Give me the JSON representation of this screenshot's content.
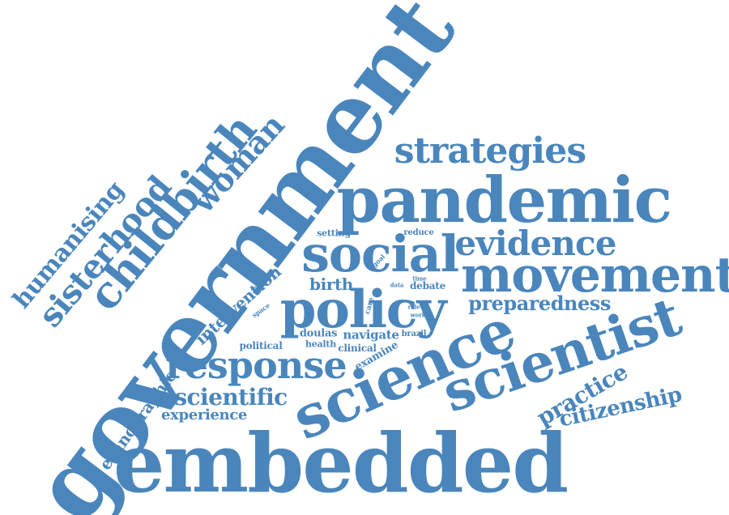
{
  "color": "#4a86bc",
  "words": [
    {
      "key": "government",
      "text": "government"
    },
    {
      "key": "pandemic",
      "text": "pandemic"
    },
    {
      "key": "embedded",
      "text": "embedded"
    },
    {
      "key": "science",
      "text": "science"
    },
    {
      "key": "scientist",
      "text": "scientist"
    },
    {
      "key": "policy",
      "text": "policy"
    },
    {
      "key": "social",
      "text": "social"
    },
    {
      "key": "movement",
      "text": "movement"
    },
    {
      "key": "strategies",
      "text": "strategies"
    },
    {
      "key": "childbirth",
      "text": "childbirth"
    },
    {
      "key": "response",
      "text": "response"
    },
    {
      "key": "evidence",
      "text": "evidence"
    },
    {
      "key": "sisterhood",
      "text": "sisterhood"
    },
    {
      "key": "woman",
      "text": "woman"
    },
    {
      "key": "humanising",
      "text": "humanising"
    },
    {
      "key": "scientific",
      "text": "scientific"
    },
    {
      "key": "preparedness",
      "text": "preparedness"
    },
    {
      "key": "practice",
      "text": "practice"
    },
    {
      "key": "citizenship",
      "text": "citizenship"
    },
    {
      "key": "ethnographic",
      "text": "ethnographic"
    },
    {
      "key": "intervention",
      "text": "intervention"
    },
    {
      "key": "experience",
      "text": "experience"
    },
    {
      "key": "birth",
      "text": "birth"
    },
    {
      "key": "navigate",
      "text": "navigate"
    },
    {
      "key": "examine",
      "text": "examine"
    },
    {
      "key": "doulas",
      "text": "doulas"
    },
    {
      "key": "clinical",
      "text": "clinical"
    },
    {
      "key": "health",
      "text": "health"
    },
    {
      "key": "political",
      "text": "political"
    },
    {
      "key": "debate",
      "text": "debate"
    },
    {
      "key": "setting",
      "text": "setting"
    },
    {
      "key": "reduce",
      "text": "reduce"
    },
    {
      "key": "brazil",
      "text": "brazil"
    },
    {
      "key": "care",
      "text": "care"
    },
    {
      "key": "space",
      "text": "space"
    },
    {
      "key": "goal",
      "text": "goal"
    },
    {
      "key": "time",
      "text": "time"
    },
    {
      "key": "data",
      "text": "data"
    },
    {
      "key": "role",
      "text": "role"
    },
    {
      "key": "work",
      "text": "work"
    }
  ]
}
